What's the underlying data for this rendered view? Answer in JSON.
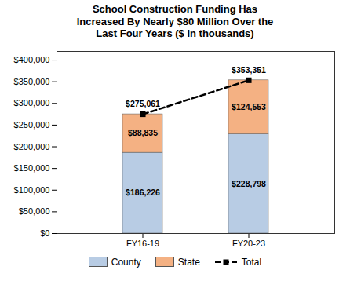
{
  "chart_data": {
    "type": "bar",
    "stacked": true,
    "title": "School Construction Funding Has\nIncreased By Nearly $80 Million Over the\nLast Four Years ($ in thousands)",
    "categories": [
      "FY16-19",
      "FY20-23"
    ],
    "series": [
      {
        "name": "County",
        "type": "bar",
        "color": "#b8cce4",
        "values": [
          186226,
          228798
        ],
        "value_labels": [
          "$186,226",
          "$228,798"
        ]
      },
      {
        "name": "State",
        "type": "bar",
        "color": "#f4b183",
        "values": [
          88835,
          124553
        ],
        "value_labels": [
          "$88,835",
          "$124,553"
        ]
      },
      {
        "name": "Total",
        "type": "line",
        "color": "#000000",
        "line_style": "dashed",
        "marker": "square",
        "values": [
          275061,
          353351
        ],
        "value_labels": [
          "$275,061",
          "$353,351"
        ]
      }
    ],
    "ylim": [
      0,
      420000
    ],
    "yticks": [
      {
        "value": 0,
        "label": "$0"
      },
      {
        "value": 50000,
        "label": "$50,000"
      },
      {
        "value": 100000,
        "label": "$100,000"
      },
      {
        "value": 150000,
        "label": "$150,000"
      },
      {
        "value": 200000,
        "label": "$200,000"
      },
      {
        "value": 250000,
        "label": "$250,000"
      },
      {
        "value": 300000,
        "label": "$300,000"
      },
      {
        "value": 350000,
        "label": "$350,000"
      },
      {
        "value": 400000,
        "label": "$400,000"
      }
    ],
    "grid": false,
    "data_labels": true,
    "legend": "bottom"
  }
}
